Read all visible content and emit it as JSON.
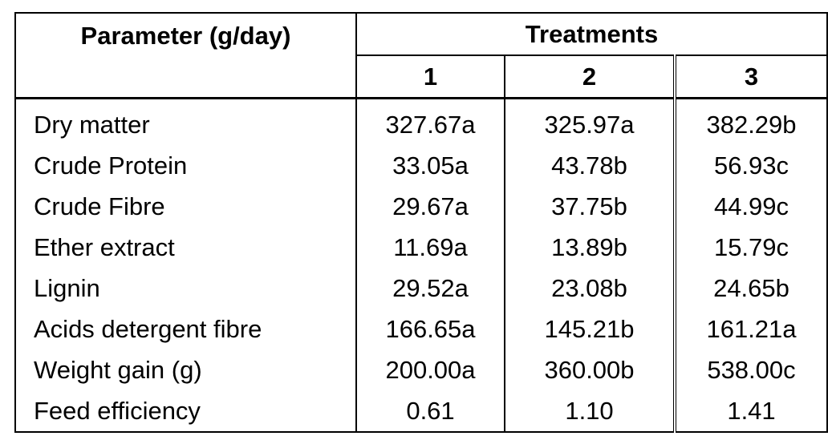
{
  "table": {
    "header": {
      "parameter": "Parameter (g/day)",
      "treatments": "Treatments",
      "columns": [
        "1",
        "2",
        "3"
      ]
    },
    "rows": [
      [
        "Dry matter",
        "327.67a",
        "325.97a",
        "382.29b"
      ],
      [
        "Crude Protein",
        "33.05a",
        "43.78b",
        "56.93c"
      ],
      [
        "Crude Fibre",
        "29.67a",
        "37.75b",
        "44.99c"
      ],
      [
        "Ether extract",
        "11.69a",
        "13.89b",
        "15.79c"
      ],
      [
        "Lignin",
        "29.52a",
        "23.08b",
        "24.65b"
      ],
      [
        "Acids detergent fibre",
        "166.65a",
        "145.21b",
        "161.21a"
      ],
      [
        "Weight gain (g)",
        "200.00a",
        "360.00b",
        "538.00c"
      ],
      [
        "Feed efficiency",
        "0.61",
        "1.10",
        "1.41"
      ]
    ]
  }
}
